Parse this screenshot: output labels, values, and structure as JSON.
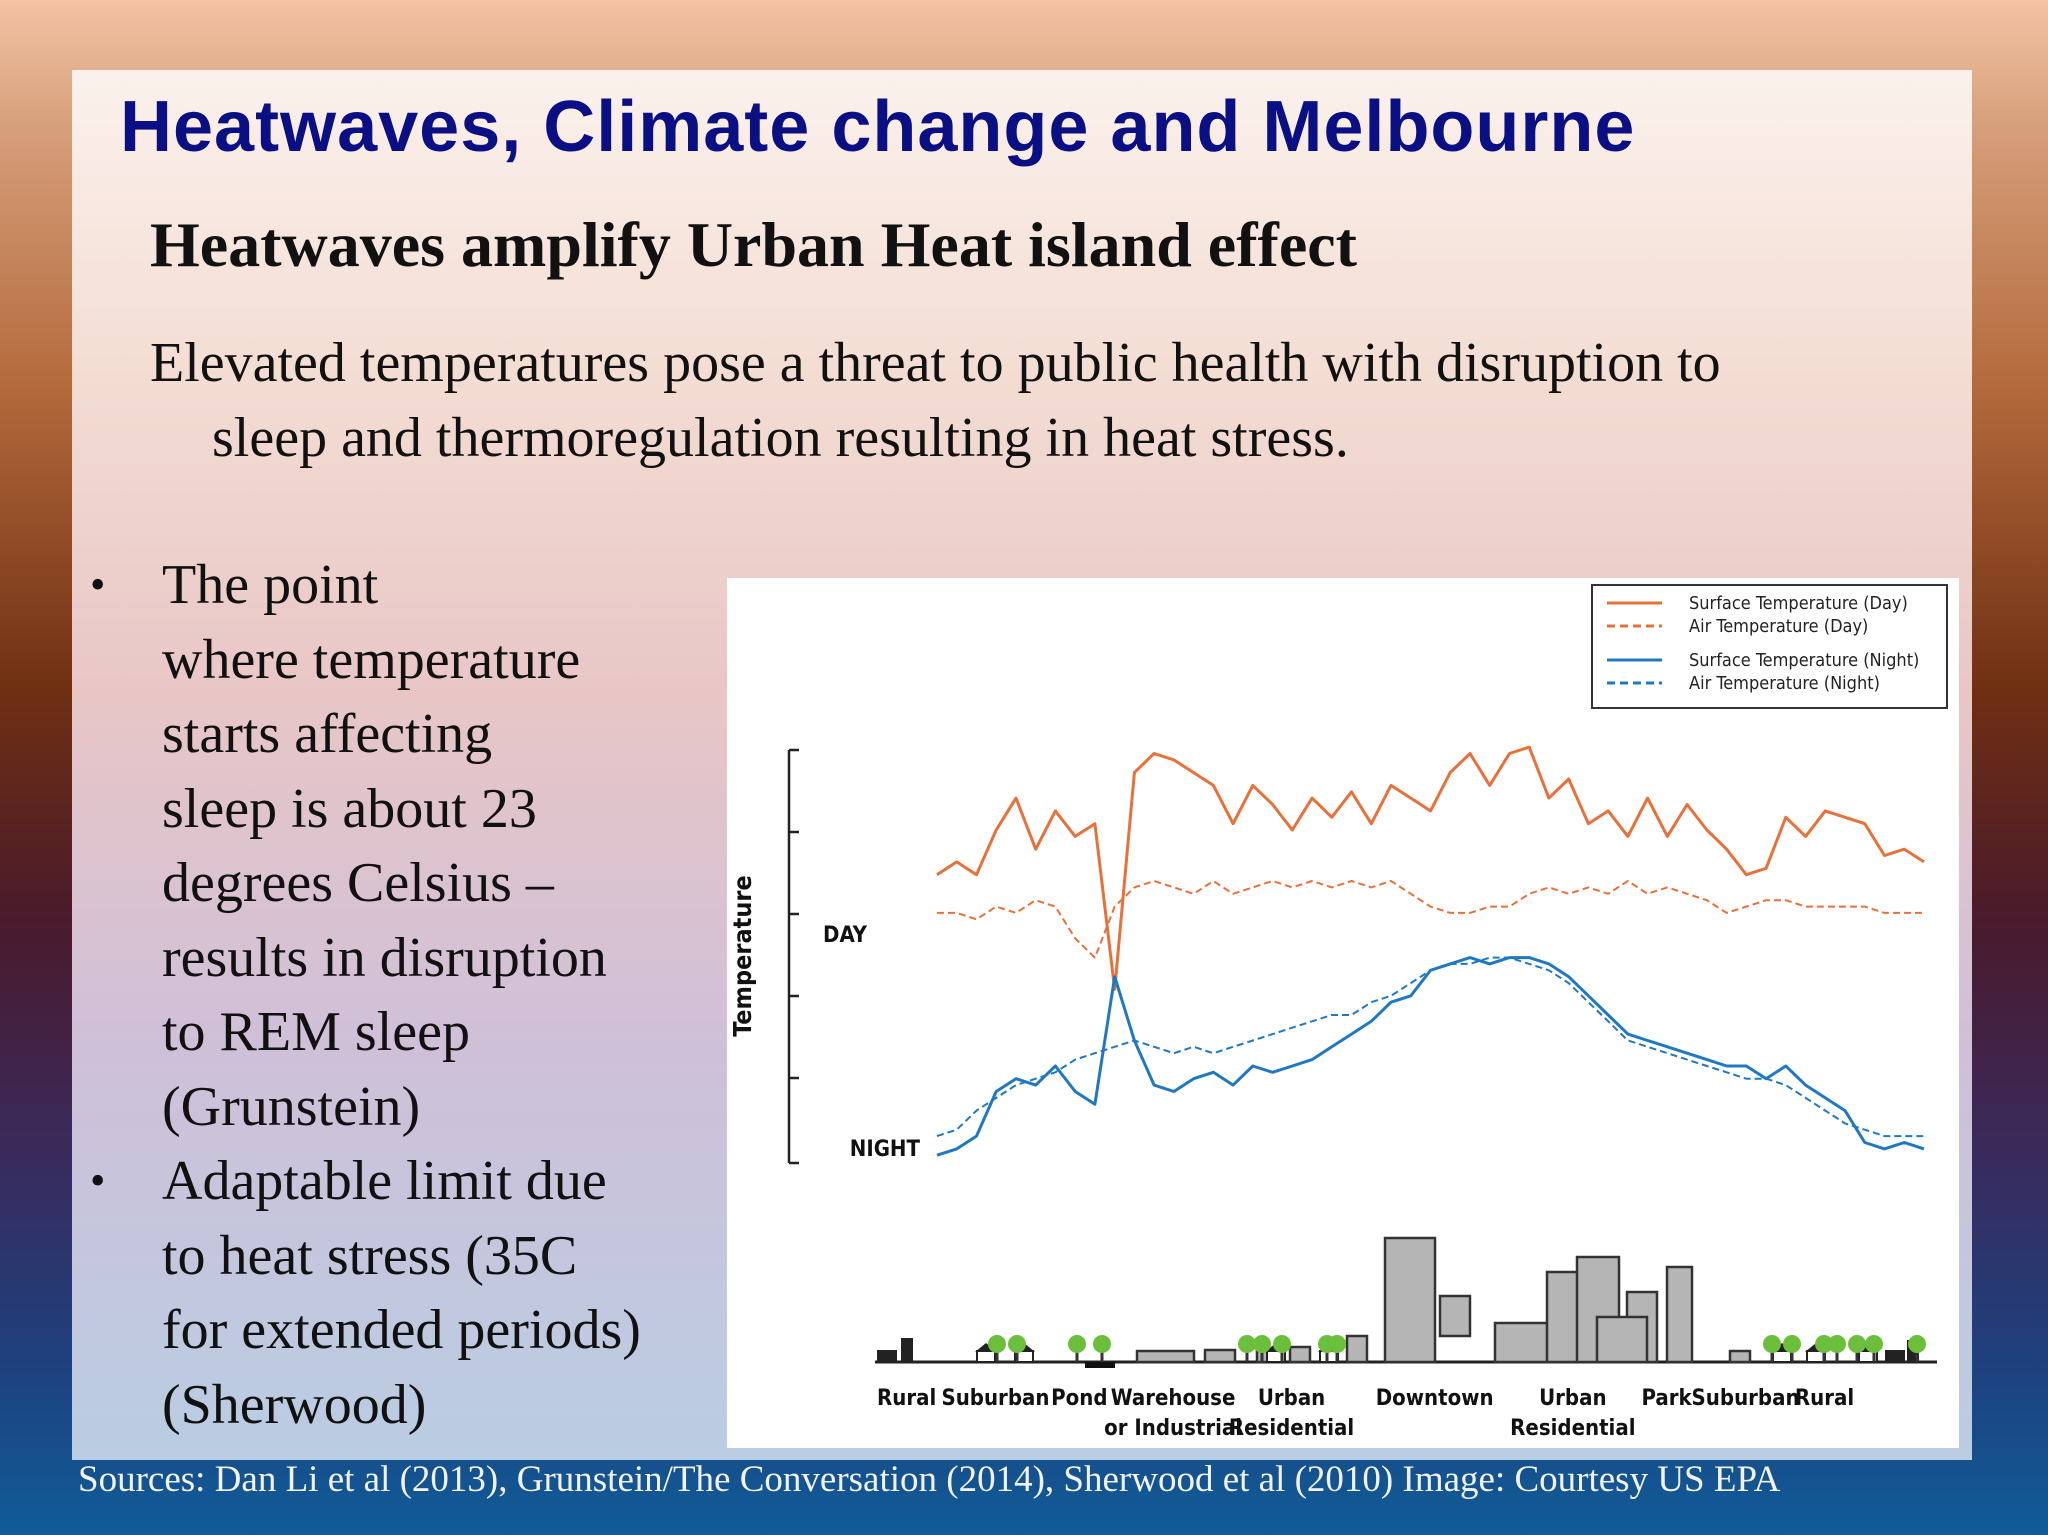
{
  "slide": {
    "title": "Heatwaves, Climate change and Melbourne",
    "subtitle": "Heatwaves amplify Urban Heat island effect",
    "intro_line1": "Elevated temperatures pose a threat to public health with disruption to",
    "intro_line2": "sleep and thermoregulation resulting in heat stress.",
    "bullets": [
      [
        "The point",
        "where temperature",
        "starts affecting",
        "sleep is about 23",
        "degrees Celsius –",
        "results in disruption",
        "to REM sleep",
        "(Grunstein)"
      ],
      [
        "Adaptable limit due",
        "to heat stress (35C",
        "for extended periods)",
        "(Sherwood)"
      ]
    ],
    "sources": "Sources: Dan Li et al (2013), Grunstein/The Conversation (2014), Sherwood et al (2010) Image: Courtesy US EPA"
  },
  "chart_data": {
    "type": "line",
    "title": "",
    "ylabel": "Temperature",
    "xlabel": "",
    "row_labels": {
      "day": "DAY",
      "night": "NIGHT"
    },
    "legend": {
      "placement": "top-right",
      "entries": [
        {
          "name": "Surface Temperature (Day)",
          "color": "#e8703a",
          "style": "solid"
        },
        {
          "name": "Air Temperature  (Day)",
          "color": "#e8703a",
          "style": "dashed"
        },
        {
          "name": "Surface Temperature (Night)",
          "color": "#1f78c1",
          "style": "solid"
        },
        {
          "name": "Air Temperature (Night)",
          "color": "#1f78c1",
          "style": "dashed"
        }
      ]
    },
    "land_use_labels": [
      {
        "lines": [
          "Rural"
        ],
        "at": 3
      },
      {
        "lines": [
          "Suburban"
        ],
        "at": 12
      },
      {
        "lines": [
          "Pond"
        ],
        "at": 20.5
      },
      {
        "lines": [
          "Warehouse",
          "or Industrial"
        ],
        "at": 30
      },
      {
        "lines": [
          "Urban",
          "Residential"
        ],
        "at": 42
      },
      {
        "lines": [
          "Downtown"
        ],
        "at": 56.5
      },
      {
        "lines": [
          "Urban",
          "Residential"
        ],
        "at": 70.5
      },
      {
        "lines": [
          "Park"
        ],
        "at": 80
      },
      {
        "lines": [
          "Suburban"
        ],
        "at": 88
      },
      {
        "lines": [
          "Rural"
        ],
        "at": 96
      }
    ],
    "x": [
      0,
      2,
      4,
      6,
      8,
      10,
      12,
      14,
      16,
      18,
      20,
      22,
      24,
      26,
      28,
      30,
      32,
      34,
      36,
      38,
      40,
      42,
      44,
      46,
      48,
      50,
      52,
      54,
      56,
      58,
      60,
      62,
      64,
      66,
      68,
      70,
      72,
      74,
      76,
      78,
      80,
      82,
      84,
      86,
      88,
      90,
      92,
      94,
      96,
      98,
      100
    ],
    "series": [
      {
        "name": "Surface Temperature (Day)",
        "color": "#e8703a",
        "style": "solid",
        "values": [
          0.0,
          0.2,
          0.0,
          0.7,
          1.2,
          0.4,
          1.0,
          0.6,
          0.8,
          -1.8,
          1.6,
          1.9,
          1.8,
          1.6,
          1.4,
          0.8,
          1.4,
          1.1,
          0.7,
          1.2,
          0.9,
          1.3,
          0.8,
          1.4,
          1.2,
          1.0,
          1.6,
          1.9,
          1.4,
          1.9,
          2.0,
          1.2,
          1.5,
          0.8,
          1.0,
          0.6,
          1.2,
          0.6,
          1.1,
          0.7,
          0.4,
          0.0,
          0.1,
          0.9,
          0.6,
          1.0,
          0.9,
          0.8,
          0.3,
          0.4,
          0.2
        ]
      },
      {
        "name": "Air Temperature  (Day)",
        "color": "#e8703a",
        "style": "dashed",
        "values": [
          -0.6,
          -0.6,
          -0.7,
          -0.5,
          -0.6,
          -0.4,
          -0.5,
          -1.0,
          -1.3,
          -0.5,
          -0.2,
          -0.1,
          -0.2,
          -0.3,
          -0.1,
          -0.3,
          -0.2,
          -0.1,
          -0.2,
          -0.1,
          -0.2,
          -0.1,
          -0.2,
          -0.1,
          -0.3,
          -0.5,
          -0.6,
          -0.6,
          -0.5,
          -0.5,
          -0.3,
          -0.2,
          -0.3,
          -0.2,
          -0.3,
          -0.1,
          -0.3,
          -0.2,
          -0.3,
          -0.4,
          -0.6,
          -0.5,
          -0.4,
          -0.4,
          -0.5,
          -0.5,
          -0.5,
          -0.5,
          -0.6,
          -0.6,
          -0.6
        ]
      },
      {
        "name": "Surface Temperature (Night)",
        "color": "#1f78c1",
        "style": "solid",
        "values": [
          -4.4,
          -4.3,
          -4.1,
          -3.4,
          -3.2,
          -3.3,
          -3.0,
          -3.4,
          -3.6,
          -1.6,
          -2.6,
          -3.3,
          -3.4,
          -3.2,
          -3.1,
          -3.3,
          -3.0,
          -3.1,
          -3.0,
          -2.9,
          -2.7,
          -2.5,
          -2.3,
          -2.0,
          -1.9,
          -1.5,
          -1.4,
          -1.3,
          -1.4,
          -1.3,
          -1.3,
          -1.4,
          -1.6,
          -1.9,
          -2.2,
          -2.5,
          -2.6,
          -2.7,
          -2.8,
          -2.9,
          -3.0,
          -3.0,
          -3.2,
          -3.0,
          -3.3,
          -3.5,
          -3.7,
          -4.2,
          -4.3,
          -4.2,
          -4.3
        ]
      },
      {
        "name": "Air Temperature (Night)",
        "color": "#1f78c1",
        "style": "dashed",
        "values": [
          -4.1,
          -4.0,
          -3.7,
          -3.5,
          -3.3,
          -3.2,
          -3.1,
          -2.9,
          -2.8,
          -2.7,
          -2.6,
          -2.7,
          -2.8,
          -2.7,
          -2.8,
          -2.7,
          -2.6,
          -2.5,
          -2.4,
          -2.3,
          -2.2,
          -2.2,
          -2.0,
          -1.9,
          -1.7,
          -1.5,
          -1.4,
          -1.4,
          -1.3,
          -1.3,
          -1.4,
          -1.5,
          -1.7,
          -2.0,
          -2.3,
          -2.6,
          -2.7,
          -2.8,
          -2.9,
          -3.0,
          -3.1,
          -3.2,
          -3.2,
          -3.3,
          -3.5,
          -3.7,
          -3.9,
          -4.0,
          -4.1,
          -4.1,
          -4.1
        ]
      }
    ],
    "grid": false
  }
}
